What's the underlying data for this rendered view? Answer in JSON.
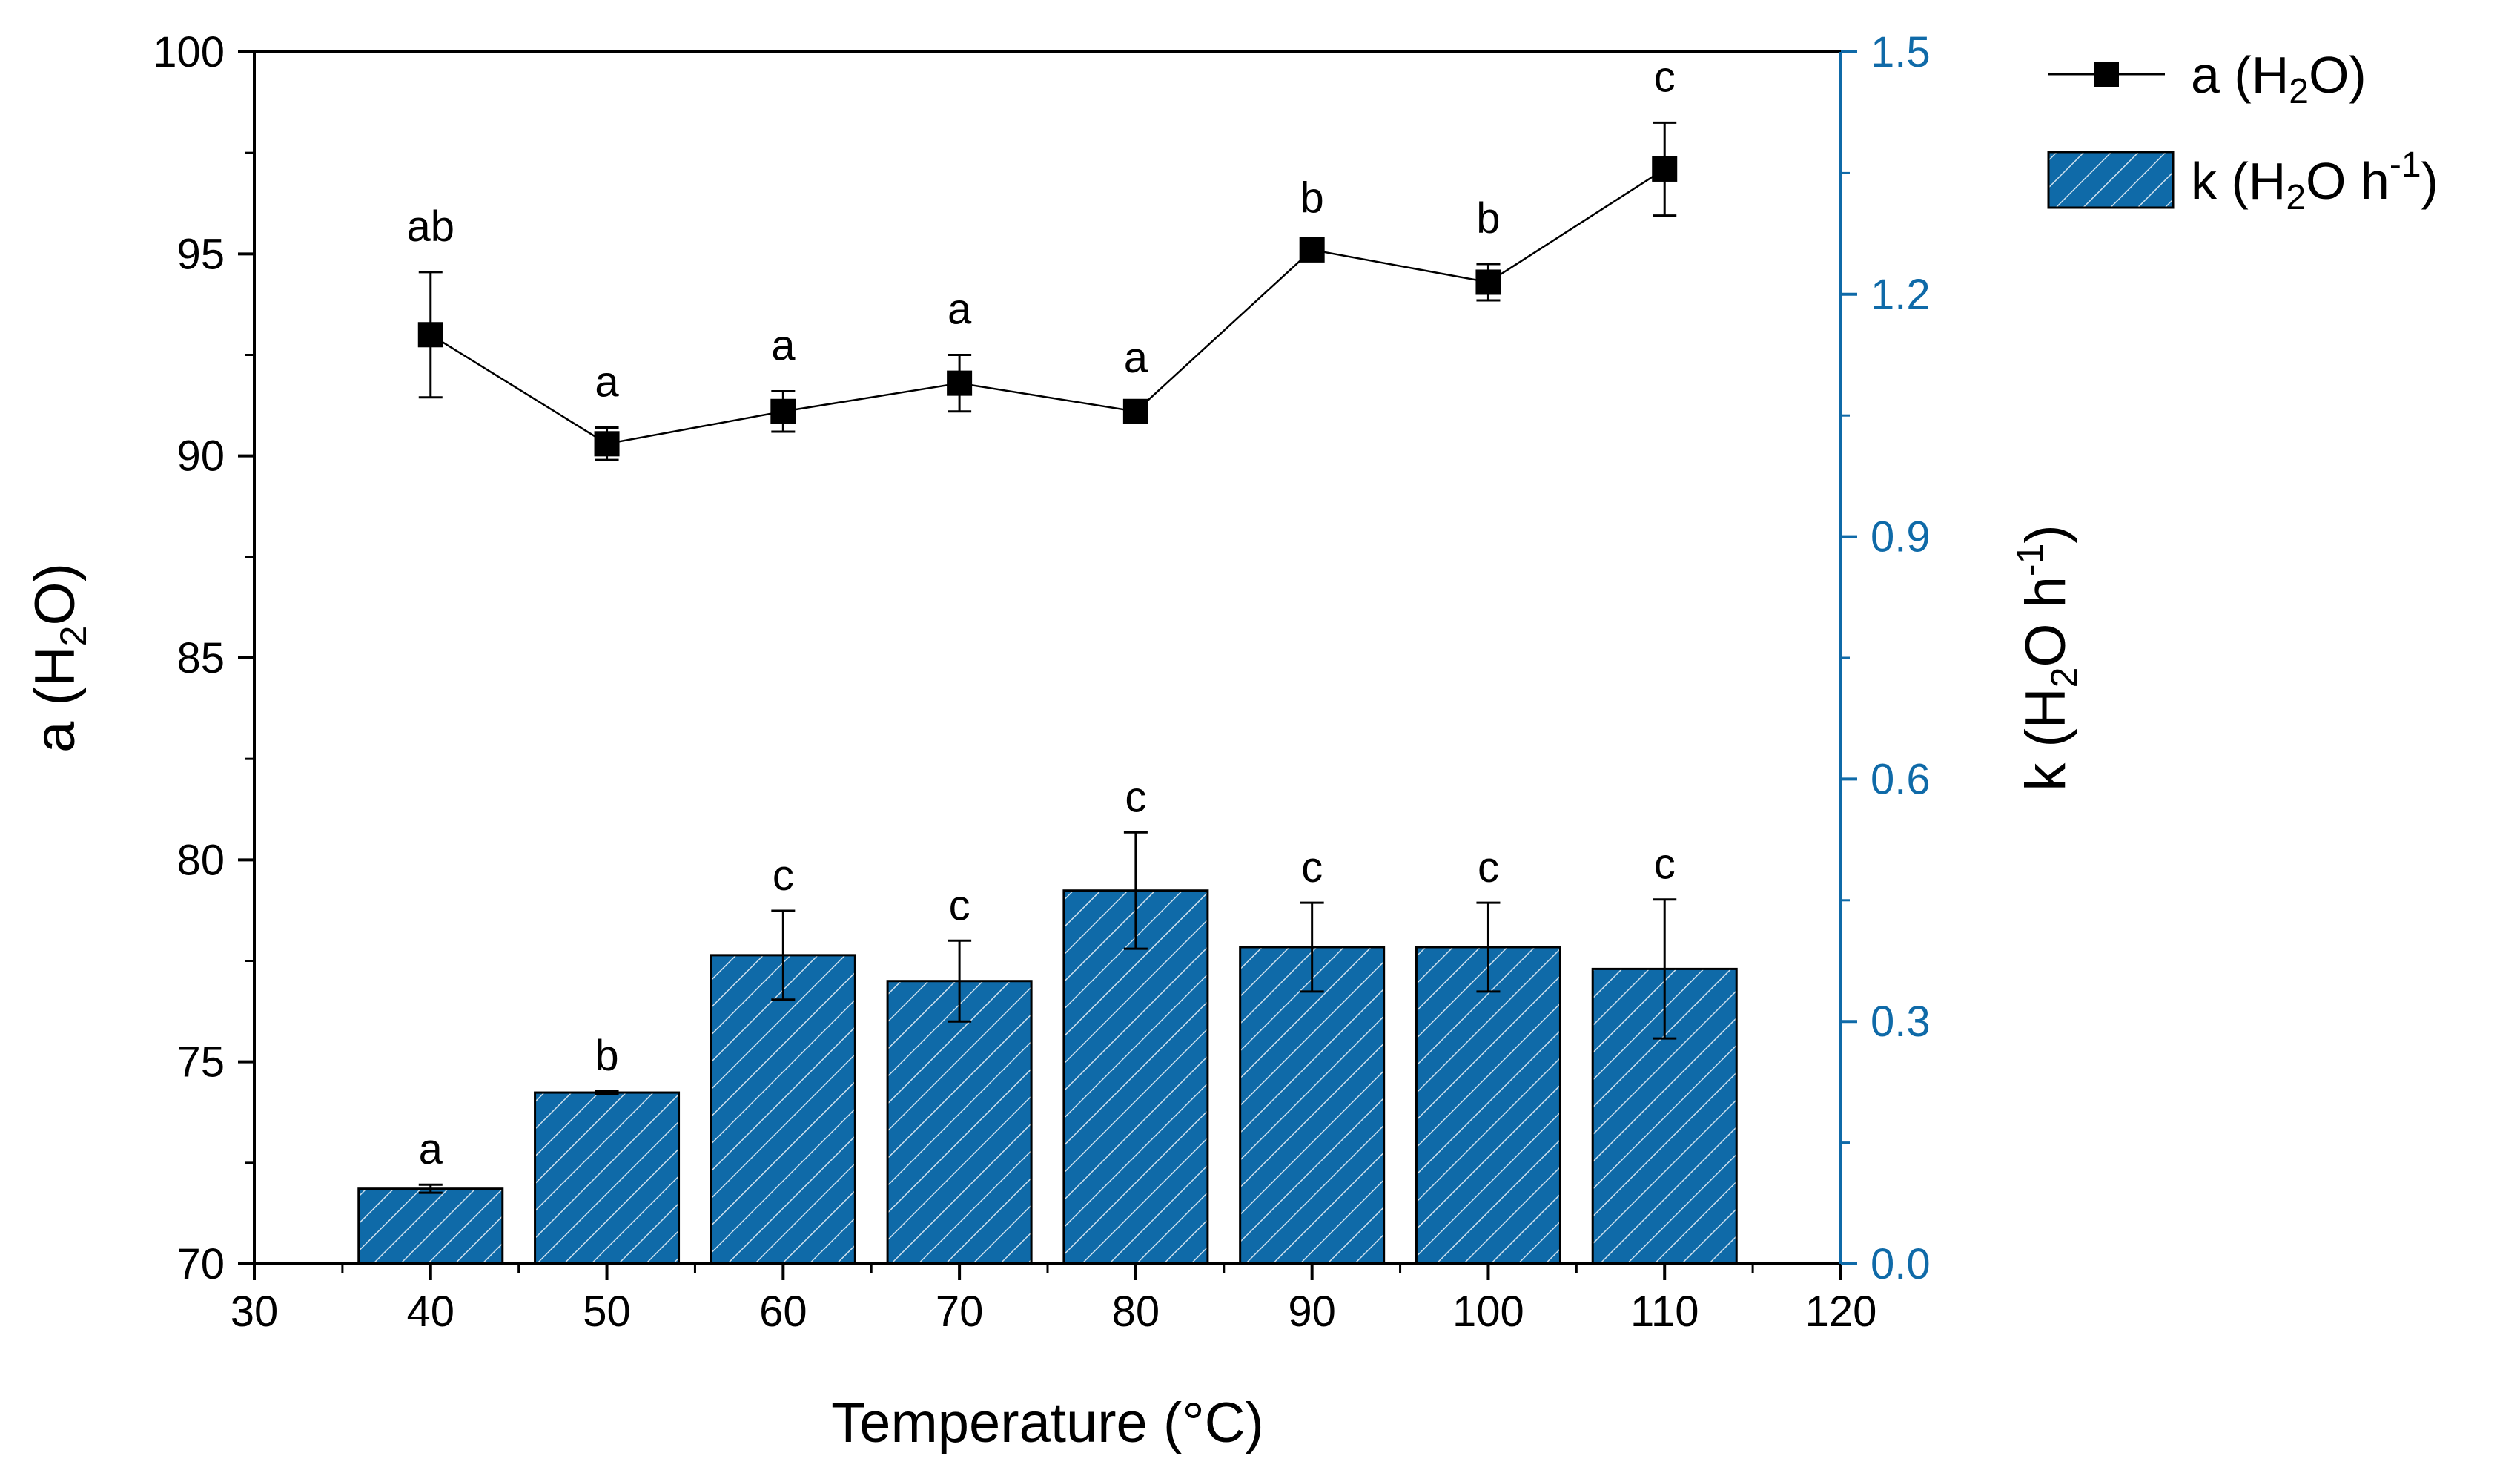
{
  "chart_data": {
    "type": "bar+line",
    "x": [
      40,
      50,
      60,
      70,
      80,
      90,
      100,
      110
    ],
    "xlim": [
      30,
      120
    ],
    "xticks": [
      30,
      40,
      50,
      60,
      70,
      80,
      90,
      100,
      110,
      120
    ],
    "xlabel": "Temperature (°C)",
    "left_axis": {
      "label_prefix": "a (H",
      "label_sub": "2",
      "label_suffix": "O)",
      "ylim": [
        70,
        100
      ],
      "ticks": [
        70,
        75,
        80,
        85,
        90,
        95,
        100
      ]
    },
    "right_axis": {
      "label_prefix": "k (H",
      "label_sub": "2",
      "label_mid": "O h",
      "label_sup": "-1",
      "label_suffix": ")",
      "ylim": [
        0.0,
        1.5
      ],
      "ticks": [
        "0.0",
        "0.3",
        "0.6",
        "0.9",
        "1.2",
        "1.5"
      ],
      "color": "#0f6aa8"
    },
    "series": [
      {
        "name": "a (H2O)",
        "legend_prefix": "a (H",
        "legend_sub": "2",
        "legend_suffix": "O)",
        "type": "line",
        "axis": "left",
        "values": [
          93.0,
          90.3,
          91.1,
          91.8,
          91.1,
          95.1,
          94.3,
          97.1
        ],
        "errors": [
          1.55,
          0.4,
          0.5,
          0.7,
          0.2,
          0.15,
          0.45,
          1.15
        ],
        "letters": [
          "ab",
          "a",
          "a",
          "a",
          "a",
          "b",
          "b",
          "c"
        ]
      },
      {
        "name": "k (H2O h-1)",
        "legend_prefix": "k (H",
        "legend_sub": "2",
        "legend_mid": "O h",
        "legend_sup": "-1",
        "legend_suffix": ")",
        "type": "bar",
        "axis": "right",
        "color": "#0f6aa8",
        "values": [
          0.093,
          0.212,
          0.382,
          0.35,
          0.462,
          0.392,
          0.392,
          0.365
        ],
        "errors": [
          0.005,
          0.002,
          0.055,
          0.05,
          0.072,
          0.055,
          0.055,
          0.086
        ],
        "letters": [
          "a",
          "b",
          "c",
          "c",
          "c",
          "c",
          "c",
          "c"
        ]
      }
    ]
  }
}
